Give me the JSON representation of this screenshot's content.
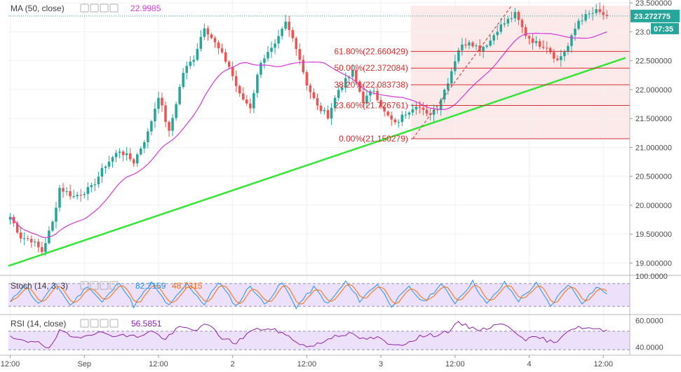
{
  "colors": {
    "up": "#26a69a",
    "down": "#ef5350",
    "ma": "#d63ad6",
    "trendline": "#33e633",
    "fib": "#d32f2f",
    "stoch_k": "#2196f3",
    "stoch_d": "#ff6d00",
    "rsi": "#8e24aa",
    "last_price_tag": "#26a69a",
    "band": "#ede0fa"
  },
  "indicators": {
    "ma": {
      "label": "MA (50, close)",
      "value": "22.9985"
    },
    "stoch": {
      "label": "Stoch (14, 3, 3)",
      "k": "82.2159",
      "d": "48.7315"
    },
    "rsi": {
      "label": "RSI (14, close)",
      "value": "56.5851"
    }
  },
  "last_price": {
    "price": "23.272775",
    "countdown": "07:35"
  },
  "chart_data": [
    {
      "type": "candlestick",
      "ylim": [
        18.8,
        23.55
      ],
      "y_ticks": [
        "23.500000",
        "23.0",
        "22.500000",
        "22.000000",
        "21.500000",
        "21.000000",
        "20.500000",
        "20.000000",
        "19.500000",
        "19.000000"
      ],
      "y_tick_values": [
        23.5,
        23.0,
        22.5,
        22.0,
        21.5,
        21.0,
        20.5,
        20.0,
        19.5,
        19.0
      ],
      "x_ticks": [
        "12:00",
        "Sep",
        "12:00",
        "2",
        "12:00",
        "3",
        "12:00",
        "4",
        "12:00"
      ],
      "x_tick_index": [
        0,
        21,
        42,
        63,
        84,
        105,
        126,
        147,
        168
      ],
      "anchors": [
        [
          0,
          19.8
        ],
        [
          3,
          19.45
        ],
        [
          6,
          19.4
        ],
        [
          9,
          19.2
        ],
        [
          12,
          19.7
        ],
        [
          14,
          20.3
        ],
        [
          18,
          20.15
        ],
        [
          23,
          20.3
        ],
        [
          27,
          20.7
        ],
        [
          31,
          20.95
        ],
        [
          35,
          20.75
        ],
        [
          39,
          21.25
        ],
        [
          42,
          21.9
        ],
        [
          45,
          21.25
        ],
        [
          49,
          22.3
        ],
        [
          52,
          22.55
        ],
        [
          55,
          23.1
        ],
        [
          59,
          22.7
        ],
        [
          62,
          22.4
        ],
        [
          65,
          21.9
        ],
        [
          68,
          21.7
        ],
        [
          71,
          22.5
        ],
        [
          75,
          22.75
        ],
        [
          78,
          23.15
        ],
        [
          81,
          22.75
        ],
        [
          84,
          22.1
        ],
        [
          87,
          21.7
        ],
        [
          90,
          21.55
        ],
        [
          93,
          22.0
        ],
        [
          97,
          22.3
        ],
        [
          100,
          21.8
        ],
        [
          103,
          22.0
        ],
        [
          106,
          21.6
        ],
        [
          109,
          21.4
        ],
        [
          112,
          21.6
        ],
        [
          115,
          21.75
        ],
        [
          118,
          21.55
        ],
        [
          121,
          21.7
        ],
        [
          124,
          22.15
        ],
        [
          127,
          22.7
        ],
        [
          130,
          22.85
        ],
        [
          133,
          22.7
        ],
        [
          136,
          22.85
        ],
        [
          138,
          23.05
        ],
        [
          141,
          23.2
        ],
        [
          143,
          23.3
        ],
        [
          146,
          22.95
        ],
        [
          149,
          22.8
        ],
        [
          152,
          22.75
        ],
        [
          155,
          22.5
        ],
        [
          158,
          22.75
        ],
        [
          161,
          23.2
        ],
        [
          164,
          23.3
        ],
        [
          166,
          23.35
        ],
        [
          169,
          23.27
        ]
      ],
      "ma_label_value": 22.9985,
      "trendline": {
        "from": [
          0,
          18.95
        ],
        "to": [
          176,
          22.55
        ]
      },
      "fibonacci": [
        {
          "label": "61.80%(22.660429)",
          "value": 22.660429
        },
        {
          "label": "50.00%(22.372084)",
          "value": 22.372084
        },
        {
          "label": "38.20%(22.083738)",
          "value": 22.083738
        },
        {
          "label": "23.60%(21.726761)",
          "value": 21.726761
        },
        {
          "label": "0.00%(21.150279)",
          "value": 21.150279
        }
      ],
      "fib_range_start_index": 114,
      "fib_swing": {
        "from": [
          114,
          21.15
        ],
        "to": [
          142,
          23.45
        ]
      }
    },
    {
      "type": "line",
      "name": "Stoch (14, 3, 3)",
      "ylim": [
        0,
        100
      ],
      "y_ticks": [
        "100.0000"
      ],
      "y_tick_values": [
        100
      ],
      "bands": [
        20,
        80
      ],
      "anchors": [
        [
          0,
          30
        ],
        [
          4,
          78
        ],
        [
          8,
          25
        ],
        [
          13,
          80
        ],
        [
          17,
          22
        ],
        [
          22,
          75
        ],
        [
          26,
          30
        ],
        [
          31,
          85
        ],
        [
          35,
          20
        ],
        [
          40,
          82
        ],
        [
          45,
          20
        ],
        [
          50,
          80
        ],
        [
          55,
          25
        ],
        [
          59,
          85
        ],
        [
          64,
          20
        ],
        [
          68,
          75
        ],
        [
          72,
          25
        ],
        [
          77,
          82
        ],
        [
          81,
          18
        ],
        [
          86,
          70
        ],
        [
          90,
          25
        ],
        [
          95,
          85
        ],
        [
          99,
          35
        ],
        [
          104,
          80
        ],
        [
          108,
          22
        ],
        [
          113,
          70
        ],
        [
          117,
          30
        ],
        [
          122,
          78
        ],
        [
          126,
          30
        ],
        [
          131,
          85
        ],
        [
          135,
          25
        ],
        [
          140,
          82
        ],
        [
          144,
          35
        ],
        [
          149,
          80
        ],
        [
          153,
          20
        ],
        [
          158,
          80
        ],
        [
          162,
          30
        ],
        [
          166,
          70
        ],
        [
          169,
          55
        ]
      ],
      "k_last": 82.2159,
      "d_last": 48.7315
    },
    {
      "type": "line",
      "name": "RSI (14, close)",
      "ylim": [
        36,
        64
      ],
      "y_ticks": [
        "60.0000",
        "40.0000"
      ],
      "y_tick_values": [
        60,
        40
      ],
      "bands": [
        38,
        52
      ],
      "anchors": [
        [
          0,
          47
        ],
        [
          4,
          44
        ],
        [
          8,
          45
        ],
        [
          11,
          38
        ],
        [
          14,
          52
        ],
        [
          18,
          47
        ],
        [
          24,
          51
        ],
        [
          30,
          49
        ],
        [
          36,
          48
        ],
        [
          40,
          52
        ],
        [
          44,
          46
        ],
        [
          48,
          55
        ],
        [
          52,
          53
        ],
        [
          56,
          57
        ],
        [
          60,
          47
        ],
        [
          64,
          43
        ],
        [
          68,
          52
        ],
        [
          72,
          54
        ],
        [
          76,
          52
        ],
        [
          80,
          46
        ],
        [
          84,
          40
        ],
        [
          88,
          43
        ],
        [
          92,
          49
        ],
        [
          96,
          50
        ],
        [
          100,
          46
        ],
        [
          104,
          47
        ],
        [
          108,
          41
        ],
        [
          112,
          43
        ],
        [
          116,
          48
        ],
        [
          120,
          49
        ],
        [
          124,
          52
        ],
        [
          127,
          58
        ],
        [
          130,
          55
        ],
        [
          134,
          53
        ],
        [
          138,
          58
        ],
        [
          142,
          54
        ],
        [
          146,
          46
        ],
        [
          150,
          47
        ],
        [
          154,
          43
        ],
        [
          158,
          53
        ],
        [
          162,
          55
        ],
        [
          166,
          53
        ],
        [
          169,
          52
        ]
      ],
      "value_last": 56.5851
    }
  ]
}
